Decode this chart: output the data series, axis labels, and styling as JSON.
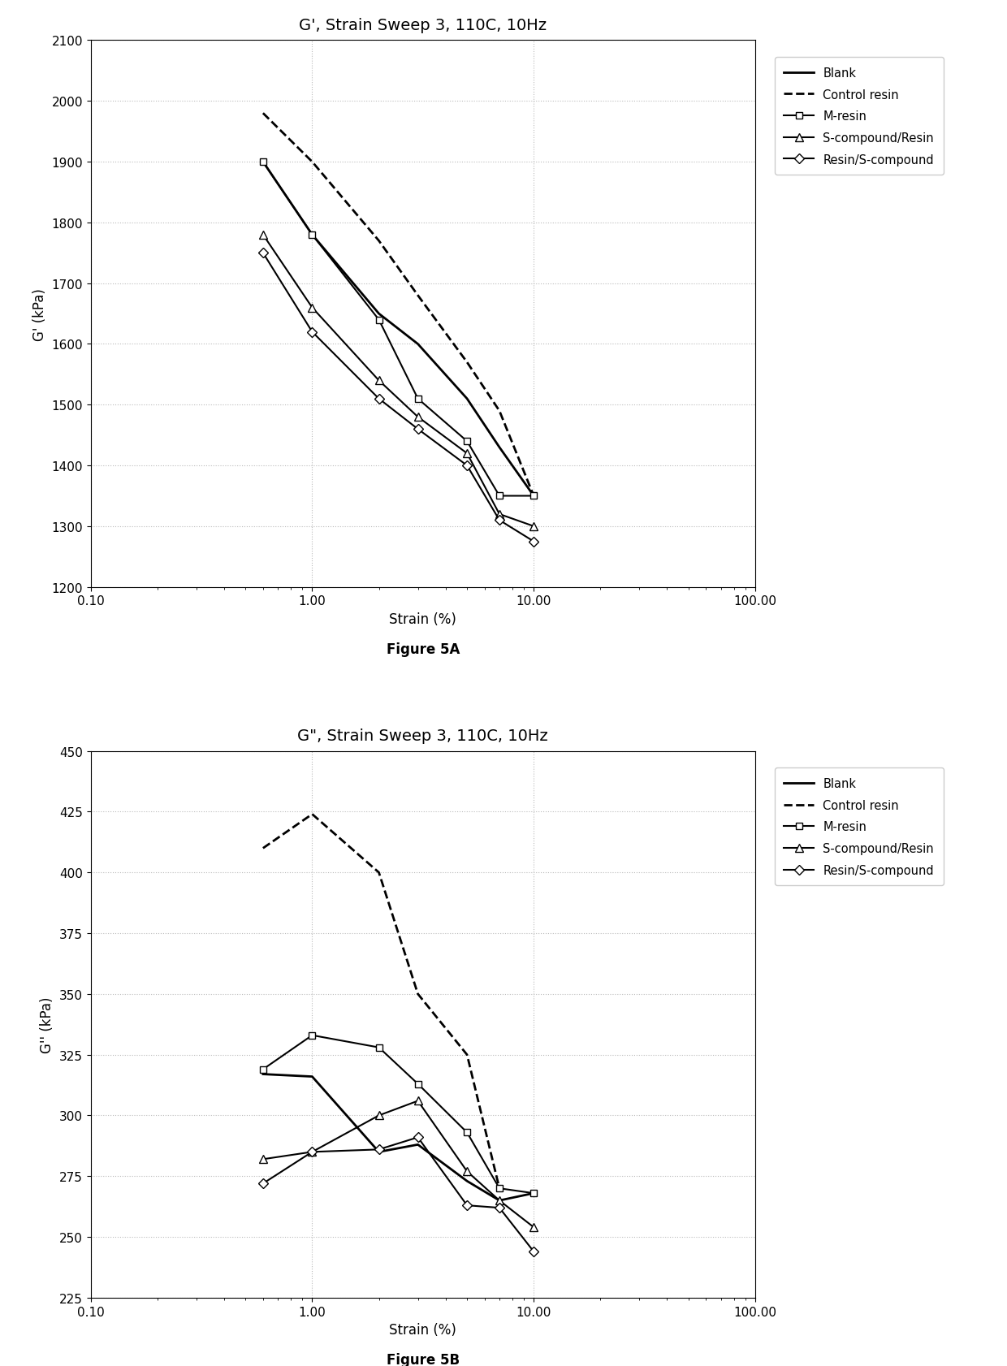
{
  "fig5a": {
    "title": "G', Strain Sweep 3, 110C, 10Hz",
    "ylabel": "G' (kPa)",
    "xlabel": "Strain (%)",
    "ylim": [
      1200,
      2100
    ],
    "yticks": [
      1200,
      1300,
      1400,
      1500,
      1600,
      1700,
      1800,
      1900,
      2000,
      2100
    ],
    "xlim": [
      0.1,
      100.0
    ],
    "xticks": [
      0.1,
      1.0,
      10.0,
      100.0
    ],
    "xticklabels": [
      "0.10",
      "1.00",
      "10.00",
      "100.00"
    ],
    "series": {
      "Blank": {
        "x": [
          0.6,
          1.0,
          2.0,
          3.0,
          5.0,
          7.0,
          10.0
        ],
        "y": [
          1900,
          1780,
          1650,
          1600,
          1510,
          1430,
          1350
        ],
        "style": "solid",
        "marker": null,
        "color": "#000000",
        "linewidth": 2.0
      },
      "Control resin": {
        "x": [
          0.6,
          1.0,
          2.0,
          3.0,
          5.0,
          7.0,
          10.0
        ],
        "y": [
          1980,
          1900,
          1770,
          1680,
          1570,
          1490,
          1350
        ],
        "style": "dashed",
        "marker": null,
        "color": "#000000",
        "linewidth": 2.0
      },
      "M-resin": {
        "x": [
          0.6,
          1.0,
          2.0,
          3.0,
          5.0,
          7.0,
          10.0
        ],
        "y": [
          1900,
          1780,
          1640,
          1510,
          1440,
          1350,
          1350
        ],
        "style": "solid",
        "marker": "s",
        "color": "#000000",
        "linewidth": 1.5
      },
      "S-compound/Resin": {
        "x": [
          0.6,
          1.0,
          2.0,
          3.0,
          5.0,
          7.0,
          10.0
        ],
        "y": [
          1780,
          1660,
          1540,
          1480,
          1420,
          1320,
          1300
        ],
        "style": "solid",
        "marker": "^",
        "color": "#000000",
        "linewidth": 1.5
      },
      "Resin/S-compound": {
        "x": [
          0.6,
          1.0,
          2.0,
          3.0,
          5.0,
          7.0,
          10.0
        ],
        "y": [
          1750,
          1620,
          1510,
          1460,
          1400,
          1310,
          1275
        ],
        "style": "solid",
        "marker": "D",
        "color": "#000000",
        "linewidth": 1.5
      }
    }
  },
  "fig5b": {
    "title": "G\", Strain Sweep 3, 110C, 10Hz",
    "ylabel": "G'' (kPa)",
    "xlabel": "Strain (%)",
    "ylim": [
      225,
      450
    ],
    "yticks": [
      225,
      250,
      275,
      300,
      325,
      350,
      375,
      400,
      425,
      450
    ],
    "xlim": [
      0.1,
      100.0
    ],
    "xticks": [
      0.1,
      1.0,
      10.0,
      100.0
    ],
    "xticklabels": [
      "0.10",
      "1.00",
      "10.00",
      "100.00"
    ],
    "series": {
      "Blank": {
        "x": [
          0.6,
          1.0,
          2.0,
          3.0,
          5.0,
          7.0,
          10.0
        ],
        "y": [
          317,
          316,
          285,
          288,
          273,
          265,
          268
        ],
        "style": "solid",
        "marker": null,
        "color": "#000000",
        "linewidth": 2.0
      },
      "Control resin": {
        "x": [
          0.6,
          1.0,
          2.0,
          3.0,
          5.0,
          7.0,
          10.0
        ],
        "y": [
          410,
          424,
          400,
          350,
          325,
          270,
          null
        ],
        "style": "dashed",
        "marker": null,
        "color": "#000000",
        "linewidth": 2.0
      },
      "M-resin": {
        "x": [
          0.6,
          1.0,
          2.0,
          3.0,
          5.0,
          7.0,
          10.0
        ],
        "y": [
          319,
          333,
          328,
          313,
          293,
          270,
          268
        ],
        "style": "solid",
        "marker": "s",
        "color": "#000000",
        "linewidth": 1.5
      },
      "S-compound/Resin": {
        "x": [
          0.6,
          1.0,
          2.0,
          3.0,
          5.0,
          7.0,
          10.0
        ],
        "y": [
          282,
          285,
          300,
          306,
          277,
          265,
          254
        ],
        "style": "solid",
        "marker": "^",
        "color": "#000000",
        "linewidth": 1.5
      },
      "Resin/S-compound": {
        "x": [
          0.6,
          1.0,
          2.0,
          3.0,
          5.0,
          7.0,
          10.0
        ],
        "y": [
          272,
          285,
          286,
          291,
          263,
          262,
          244
        ],
        "style": "solid",
        "marker": "D",
        "color": "#000000",
        "linewidth": 1.5
      }
    }
  },
  "figure_captions": [
    "Figure 5A",
    "Figure 5B"
  ],
  "background_color": "#ffffff",
  "grid_color": "#bbbbbb",
  "legend_entries": [
    "Blank",
    "Control resin",
    "M-resin",
    "S-compound/Resin",
    "Resin/S-compound"
  ]
}
